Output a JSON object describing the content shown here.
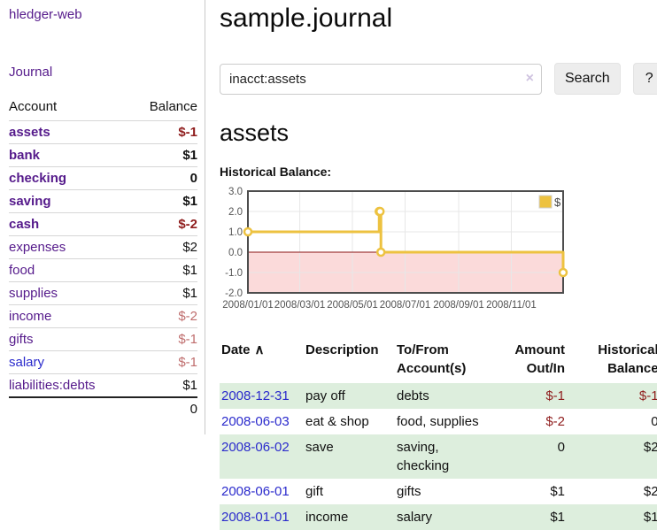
{
  "colors": {
    "accent_purple": "#551a8b",
    "link_blue": "#2a2acc",
    "negative_strong": "#8f1d1d",
    "negative_soft": "#bf6d6d",
    "row_highlight_green": "#ddeedd",
    "chart_line_yellow": "#edc240"
  },
  "sidebar": {
    "app_title": "hledger-web",
    "journal_link": "Journal",
    "accounts": {
      "header": {
        "account": "Account",
        "balance": "Balance"
      },
      "rows": [
        {
          "name": "assets",
          "balance": "$-1"
        },
        {
          "name": "bank",
          "balance": "$1"
        },
        {
          "name": "checking",
          "balance": "0"
        },
        {
          "name": "saving",
          "balance": "$1"
        },
        {
          "name": "cash",
          "balance": "$-2"
        },
        {
          "name": "expenses",
          "balance": "$2"
        },
        {
          "name": "food",
          "balance": "$1"
        },
        {
          "name": "supplies",
          "balance": "$1"
        },
        {
          "name": "income",
          "balance": "$-2"
        },
        {
          "name": "gifts",
          "balance": "$-1"
        },
        {
          "name": "salary",
          "balance": "$-1"
        },
        {
          "name": "liabilities:debts",
          "balance": "$1"
        }
      ],
      "total": "0"
    }
  },
  "main": {
    "title": "sample.journal",
    "search": {
      "value": "inacct:assets",
      "clear": "×",
      "button": "Search",
      "help": "?"
    },
    "heading": "assets",
    "chart_title": "Historical Balance:"
  },
  "chart_data": {
    "type": "line",
    "subtype": "step",
    "title": "Historical Balance",
    "legend": [
      {
        "label": "$",
        "color": "#edc240"
      }
    ],
    "legend_position": "top-right",
    "grid": true,
    "x_range": [
      "2008-01-01",
      "2008-12-31"
    ],
    "ylim": [
      -2,
      3
    ],
    "y_ticks": [
      "3.0",
      "2.0",
      "1.0",
      "0.0",
      "-1.0",
      "-2.0"
    ],
    "x_ticks": [
      {
        "label": "2008/01/01",
        "date": "2008-01-01"
      },
      {
        "label": "2008/03/01",
        "date": "2008-03-01"
      },
      {
        "label": "2008/05/01",
        "date": "2008-05-01"
      },
      {
        "label": "2008/07/01",
        "date": "2008-07-01"
      },
      {
        "label": "2008/09/01",
        "date": "2008-09-01"
      },
      {
        "label": "2008/11/01",
        "date": "2008-11-01"
      }
    ],
    "series": [
      {
        "name": "$",
        "color": "#edc240",
        "points": [
          [
            "2008-01-01",
            1
          ],
          [
            "2008-06-01",
            2
          ],
          [
            "2008-06-02",
            2
          ],
          [
            "2008-06-03",
            0
          ],
          [
            "2008-12-31",
            -1
          ]
        ]
      }
    ],
    "style": {
      "negative_fill": "#fbdada",
      "zero_line": "#8b1414",
      "grid_color": "#e7e7e7",
      "border_color": "#4d4d4d"
    }
  },
  "register": {
    "headers": {
      "date": "Date",
      "sort_arrow": "∧",
      "description": "Description",
      "accounts": "To/From Account(s)",
      "amount": "Amount Out/In",
      "balance": "Historical Balance"
    },
    "rows": [
      {
        "date": "2008-12-31",
        "description": "pay off",
        "accounts": "debts",
        "amount": "$-1",
        "balance": "$-1"
      },
      {
        "date": "2008-06-03",
        "description": "eat & shop",
        "accounts": "food, supplies",
        "amount": "$-2",
        "balance": "0"
      },
      {
        "date": "2008-06-02",
        "description": "save",
        "accounts": "saving, checking",
        "amount": "0",
        "balance": "$2"
      },
      {
        "date": "2008-06-01",
        "description": "gift",
        "accounts": "gifts",
        "amount": "$1",
        "balance": "$2"
      },
      {
        "date": "2008-01-01",
        "description": "income",
        "accounts": "salary",
        "amount": "$1",
        "balance": "$1"
      }
    ]
  }
}
